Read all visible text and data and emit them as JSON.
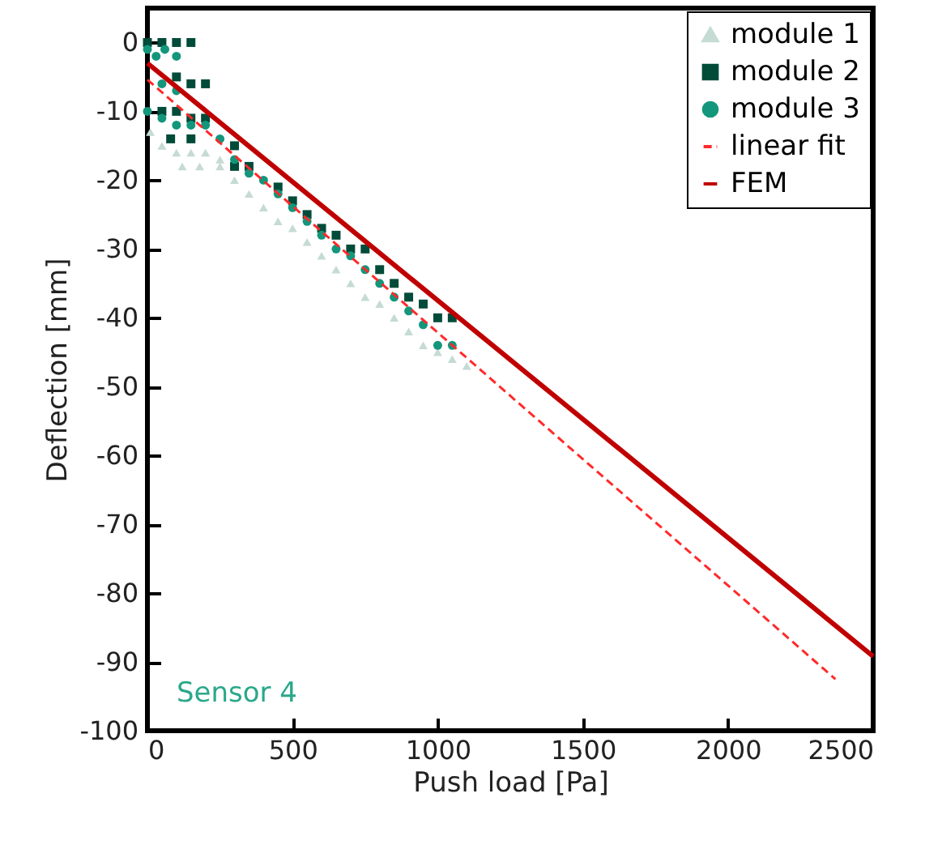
{
  "chart_data": {
    "type": "scatter",
    "xlabel": "Push load [Pa]",
    "ylabel": "Deflection [mm]",
    "xlim": [
      0,
      2500
    ],
    "xticks": [
      0,
      500,
      1000,
      1500,
      2000,
      2500
    ],
    "ylim": [
      -100,
      5
    ],
    "yticks": [
      0,
      -10,
      -20,
      -30,
      -40,
      -50,
      -60,
      -70,
      -80,
      -90,
      -100
    ],
    "grid": false,
    "legend": "top right",
    "annotations": [
      "Sensor 4"
    ],
    "series": [
      {
        "name": "module 1",
        "marker": "triangle",
        "color": "#c5dbd3",
        "x": [
          10,
          50,
          100,
          150,
          200,
          250,
          120,
          180,
          250,
          300,
          350,
          400,
          450,
          500,
          550,
          600,
          650,
          700,
          750,
          800,
          850,
          900,
          950,
          1000,
          1050,
          1100
        ],
        "values": [
          -13,
          -15,
          -16,
          -16,
          -16,
          -17,
          -18,
          -18,
          -18,
          -20,
          -22,
          -24,
          -26,
          -27,
          -29,
          -31,
          -33,
          -35,
          -37,
          -38,
          -40,
          -42,
          -44,
          -45,
          -46,
          -47
        ]
      },
      {
        "name": "module 2",
        "marker": "square",
        "color": "#004b39",
        "x": [
          0,
          50,
          100,
          150,
          100,
          150,
          200,
          50,
          100,
          150,
          200,
          80,
          150,
          300,
          350,
          300,
          450,
          500,
          550,
          600,
          650,
          700,
          750,
          800,
          850,
          900,
          950,
          1000,
          1050
        ],
        "values": [
          0,
          0,
          0,
          0,
          -5,
          -6,
          -6,
          -10,
          -10,
          -11,
          -11,
          -14,
          -14,
          -15,
          -18,
          -18,
          -21,
          -23,
          -25,
          -27,
          -28,
          -30,
          -30,
          -33,
          -35,
          -37,
          -38,
          -40,
          -40
        ]
      },
      {
        "name": "module 3",
        "marker": "circle",
        "color": "#13967c",
        "x": [
          0,
          30,
          60,
          100,
          50,
          100,
          0,
          50,
          100,
          150,
          200,
          250,
          300,
          350,
          400,
          450,
          500,
          550,
          600,
          650,
          700,
          750,
          800,
          850,
          900,
          950,
          1000,
          1050
        ],
        "values": [
          -1,
          -2,
          -1,
          -2,
          -6,
          -7,
          -10,
          -11,
          -12,
          -12,
          -12,
          -14,
          -17,
          -19,
          -20,
          -22,
          -24,
          -26,
          -28,
          -30,
          -31,
          -33,
          -35,
          -37,
          -39,
          -41,
          -44,
          -44
        ]
      },
      {
        "name": "linear fit",
        "type": "line",
        "line_style": "dashed",
        "color": "#ff2a2a",
        "x": [
          0,
          2370
        ],
        "values": [
          -5.4,
          -92.5
        ]
      },
      {
        "name": "FEM",
        "type": "line",
        "line_style": "solid",
        "color": "#c00000",
        "x": [
          0,
          2500
        ],
        "values": [
          -3,
          -89.2
        ]
      }
    ]
  }
}
